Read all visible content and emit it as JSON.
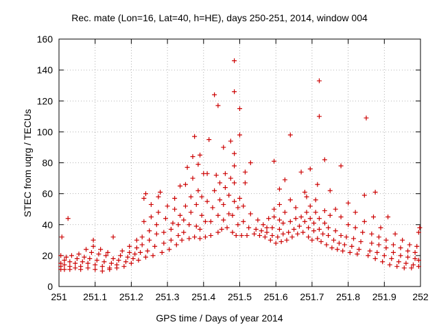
{
  "chart_data": {
    "type": "scatter",
    "title": "Rec. mate (Lon=16, Lat=40, h=HE), days 250-251, 2014, window 004",
    "xlabel": "GPS time / Days of year 2014",
    "ylabel": "STEC from uqrg / TECUs",
    "xlim": [
      251,
      252
    ],
    "ylim": [
      0,
      160
    ],
    "xticks": [
      "251",
      "251.1",
      "251.2",
      "251.3",
      "251.4",
      "251.5",
      "251.6",
      "251.7",
      "251.8",
      "251.9",
      "252"
    ],
    "yticks": [
      "0",
      "20",
      "40",
      "60",
      "80",
      "100",
      "120",
      "140",
      "160"
    ],
    "grid": true,
    "marker": "+",
    "color": "#cc0000",
    "series": [
      {
        "points": [
          [
            251.005,
            11
          ],
          [
            251.005,
            13
          ],
          [
            251.005,
            15
          ],
          [
            251.005,
            20
          ],
          [
            251.008,
            32
          ],
          [
            251.015,
            11
          ],
          [
            251.015,
            14
          ],
          [
            251.015,
            17
          ],
          [
            251.02,
            19
          ],
          [
            251.025,
            44
          ],
          [
            251.03,
            11
          ],
          [
            251.03,
            13
          ],
          [
            251.03,
            16
          ],
          [
            251.035,
            20
          ],
          [
            251.045,
            12
          ],
          [
            251.045,
            15
          ],
          [
            251.05,
            18
          ],
          [
            251.055,
            21
          ],
          [
            251.06,
            11
          ],
          [
            251.06,
            13
          ],
          [
            251.065,
            16
          ],
          [
            251.07,
            19
          ],
          [
            251.075,
            24
          ],
          [
            251.08,
            12
          ],
          [
            251.08,
            15
          ],
          [
            251.085,
            18
          ],
          [
            251.09,
            22
          ],
          [
            251.095,
            26
          ],
          [
            251.095,
            30
          ],
          [
            251.1,
            11
          ],
          [
            251.1,
            14
          ],
          [
            251.105,
            17
          ],
          [
            251.11,
            21
          ],
          [
            251.115,
            24
          ],
          [
            251.12,
            10
          ],
          [
            251.12,
            13
          ],
          [
            251.125,
            16
          ],
          [
            251.13,
            20
          ],
          [
            251.135,
            22
          ],
          [
            251.14,
            11
          ],
          [
            251.14,
            12
          ],
          [
            251.145,
            15
          ],
          [
            251.15,
            18
          ],
          [
            251.15,
            32
          ],
          [
            251.16,
            12
          ],
          [
            251.16,
            14
          ],
          [
            251.165,
            17
          ],
          [
            251.17,
            20
          ],
          [
            251.175,
            23
          ],
          [
            251.18,
            13
          ],
          [
            251.185,
            16
          ],
          [
            251.19,
            19
          ],
          [
            251.195,
            22
          ],
          [
            251.195,
            26
          ],
          [
            251.2,
            15
          ],
          [
            251.205,
            18
          ],
          [
            251.21,
            21
          ],
          [
            251.215,
            25
          ],
          [
            251.215,
            30
          ],
          [
            251.22,
            17
          ],
          [
            251.225,
            22
          ],
          [
            251.23,
            27
          ],
          [
            251.23,
            32
          ],
          [
            251.235,
            42
          ],
          [
            251.235,
            57
          ],
          [
            251.24,
            19
          ],
          [
            251.245,
            23
          ],
          [
            251.25,
            30
          ],
          [
            251.25,
            36
          ],
          [
            251.255,
            45
          ],
          [
            251.255,
            53
          ],
          [
            251.24,
            60
          ],
          [
            251.26,
            20
          ],
          [
            251.265,
            26
          ],
          [
            251.27,
            34
          ],
          [
            251.27,
            40
          ],
          [
            251.275,
            48
          ],
          [
            251.275,
            58
          ],
          [
            251.28,
            61
          ],
          [
            251.285,
            22
          ],
          [
            251.29,
            28
          ],
          [
            251.29,
            35
          ],
          [
            251.295,
            44
          ],
          [
            251.3,
            52
          ],
          [
            251.305,
            24
          ],
          [
            251.31,
            30
          ],
          [
            251.31,
            37
          ],
          [
            251.315,
            41
          ],
          [
            251.32,
            50
          ],
          [
            251.32,
            57
          ],
          [
            251.325,
            27
          ],
          [
            251.33,
            33
          ],
          [
            251.33,
            40
          ],
          [
            251.335,
            46
          ],
          [
            251.335,
            65
          ],
          [
            251.34,
            30
          ],
          [
            251.345,
            35
          ],
          [
            251.345,
            43
          ],
          [
            251.35,
            52
          ],
          [
            251.35,
            66
          ],
          [
            251.355,
            77
          ],
          [
            251.36,
            31
          ],
          [
            251.36,
            40
          ],
          [
            251.365,
            48
          ],
          [
            251.365,
            58
          ],
          [
            251.37,
            70
          ],
          [
            251.37,
            84
          ],
          [
            251.375,
            32
          ],
          [
            251.38,
            39
          ],
          [
            251.38,
            53
          ],
          [
            251.385,
            62
          ],
          [
            251.385,
            79
          ],
          [
            251.375,
            97
          ],
          [
            251.39,
            31
          ],
          [
            251.39,
            37
          ],
          [
            251.395,
            46
          ],
          [
            251.395,
            58
          ],
          [
            251.4,
            73
          ],
          [
            251.39,
            85
          ],
          [
            251.405,
            32
          ],
          [
            251.405,
            42
          ],
          [
            251.41,
            55
          ],
          [
            251.41,
            73
          ],
          [
            251.415,
            95
          ],
          [
            251.42,
            33
          ],
          [
            251.42,
            42
          ],
          [
            251.425,
            51
          ],
          [
            251.43,
            62
          ],
          [
            251.435,
            72
          ],
          [
            251.43,
            124
          ],
          [
            251.44,
            35
          ],
          [
            251.44,
            46
          ],
          [
            251.445,
            56
          ],
          [
            251.445,
            67
          ],
          [
            251.44,
            117
          ],
          [
            251.45,
            37
          ],
          [
            251.455,
            43
          ],
          [
            251.455,
            53
          ],
          [
            251.46,
            64
          ],
          [
            251.46,
            73
          ],
          [
            251.455,
            90
          ],
          [
            251.465,
            38
          ],
          [
            251.47,
            47
          ],
          [
            251.47,
            59
          ],
          [
            251.475,
            70
          ],
          [
            251.475,
            94
          ],
          [
            251.48,
            35
          ],
          [
            251.48,
            46
          ],
          [
            251.485,
            55
          ],
          [
            251.485,
            67
          ],
          [
            251.485,
            78
          ],
          [
            251.485,
            86
          ],
          [
            251.485,
            126
          ],
          [
            251.485,
            146
          ],
          [
            251.49,
            33
          ],
          [
            251.495,
            40
          ],
          [
            251.495,
            51
          ],
          [
            251.5,
            57
          ],
          [
            251.5,
            98
          ],
          [
            251.5,
            115
          ],
          [
            251.505,
            33
          ],
          [
            251.51,
            42
          ],
          [
            251.51,
            52
          ],
          [
            251.515,
            67
          ],
          [
            251.515,
            74
          ],
          [
            251.52,
            33
          ],
          [
            251.525,
            38
          ],
          [
            251.53,
            47
          ],
          [
            251.53,
            80
          ],
          [
            251.54,
            34
          ],
          [
            251.545,
            37
          ],
          [
            251.55,
            43
          ],
          [
            251.555,
            33
          ],
          [
            251.56,
            36
          ],
          [
            251.565,
            40
          ],
          [
            251.57,
            32
          ],
          [
            251.575,
            35
          ],
          [
            251.575,
            38
          ],
          [
            251.58,
            44
          ],
          [
            251.585,
            30
          ],
          [
            251.59,
            33
          ],
          [
            251.59,
            38
          ],
          [
            251.595,
            45
          ],
          [
            251.595,
            50
          ],
          [
            251.595,
            81
          ],
          [
            251.6,
            28
          ],
          [
            251.605,
            32
          ],
          [
            251.61,
            37
          ],
          [
            251.61,
            43
          ],
          [
            251.61,
            53
          ],
          [
            251.61,
            63
          ],
          [
            251.615,
            29
          ],
          [
            251.62,
            34
          ],
          [
            251.62,
            41
          ],
          [
            251.625,
            48
          ],
          [
            251.625,
            69
          ],
          [
            251.63,
            30
          ],
          [
            251.635,
            35
          ],
          [
            251.64,
            42
          ],
          [
            251.64,
            56
          ],
          [
            251.64,
            98
          ],
          [
            251.645,
            32
          ],
          [
            251.65,
            37
          ],
          [
            251.655,
            44
          ],
          [
            251.655,
            51
          ],
          [
            251.66,
            34
          ],
          [
            251.665,
            39
          ],
          [
            251.67,
            45
          ],
          [
            251.67,
            74
          ],
          [
            251.675,
            35
          ],
          [
            251.68,
            42
          ],
          [
            251.685,
            48
          ],
          [
            251.685,
            58
          ],
          [
            251.68,
            61
          ],
          [
            251.69,
            32
          ],
          [
            251.69,
            38
          ],
          [
            251.695,
            44
          ],
          [
            251.695,
            52
          ],
          [
            251.695,
            76
          ],
          [
            251.7,
            30
          ],
          [
            251.705,
            36
          ],
          [
            251.705,
            41
          ],
          [
            251.71,
            48
          ],
          [
            251.71,
            56
          ],
          [
            251.715,
            66
          ],
          [
            251.715,
            31
          ],
          [
            251.72,
            37
          ],
          [
            251.72,
            44
          ],
          [
            251.72,
            110
          ],
          [
            251.72,
            133
          ],
          [
            251.725,
            29
          ],
          [
            251.73,
            34
          ],
          [
            251.735,
            41
          ],
          [
            251.735,
            49
          ],
          [
            251.735,
            82
          ],
          [
            251.74,
            27
          ],
          [
            251.745,
            33
          ],
          [
            251.745,
            38
          ],
          [
            251.75,
            46
          ],
          [
            251.75,
            62
          ],
          [
            251.755,
            25
          ],
          [
            251.76,
            30
          ],
          [
            251.765,
            36
          ],
          [
            251.765,
            50
          ],
          [
            251.77,
            24
          ],
          [
            251.775,
            28
          ],
          [
            251.78,
            33
          ],
          [
            251.78,
            45
          ],
          [
            251.78,
            78
          ],
          [
            251.785,
            23
          ],
          [
            251.79,
            27
          ],
          [
            251.795,
            32
          ],
          [
            251.8,
            40
          ],
          [
            251.8,
            54
          ],
          [
            251.805,
            22
          ],
          [
            251.81,
            26
          ],
          [
            251.815,
            31
          ],
          [
            251.82,
            38
          ],
          [
            251.82,
            48
          ],
          [
            251.825,
            21
          ],
          [
            251.83,
            24
          ],
          [
            251.835,
            29
          ],
          [
            251.84,
            35
          ],
          [
            251.845,
            42
          ],
          [
            251.845,
            59
          ],
          [
            251.85,
            109
          ],
          [
            251.855,
            20
          ],
          [
            251.86,
            23
          ],
          [
            251.865,
            28
          ],
          [
            251.865,
            34
          ],
          [
            251.87,
            45
          ],
          [
            251.875,
            61
          ],
          [
            251.875,
            18
          ],
          [
            251.88,
            22
          ],
          [
            251.885,
            27
          ],
          [
            251.885,
            32
          ],
          [
            251.89,
            38
          ],
          [
            251.895,
            16
          ],
          [
            251.9,
            20
          ],
          [
            251.905,
            25
          ],
          [
            251.905,
            30
          ],
          [
            251.91,
            45
          ],
          [
            251.915,
            14
          ],
          [
            251.92,
            18
          ],
          [
            251.925,
            22
          ],
          [
            251.925,
            27
          ],
          [
            251.93,
            34
          ],
          [
            251.935,
            13
          ],
          [
            251.94,
            16
          ],
          [
            251.945,
            20
          ],
          [
            251.945,
            25
          ],
          [
            251.95,
            30
          ],
          [
            251.955,
            12
          ],
          [
            251.96,
            15
          ],
          [
            251.965,
            19
          ],
          [
            251.965,
            23
          ],
          [
            251.97,
            27
          ],
          [
            251.975,
            12
          ],
          [
            251.98,
            14
          ],
          [
            251.985,
            18
          ],
          [
            251.985,
            22
          ],
          [
            251.99,
            26
          ],
          [
            251.995,
            13
          ],
          [
            251.995,
            17
          ],
          [
            251.995,
            35
          ],
          [
            251.998,
            38
          ]
        ]
      }
    ]
  }
}
